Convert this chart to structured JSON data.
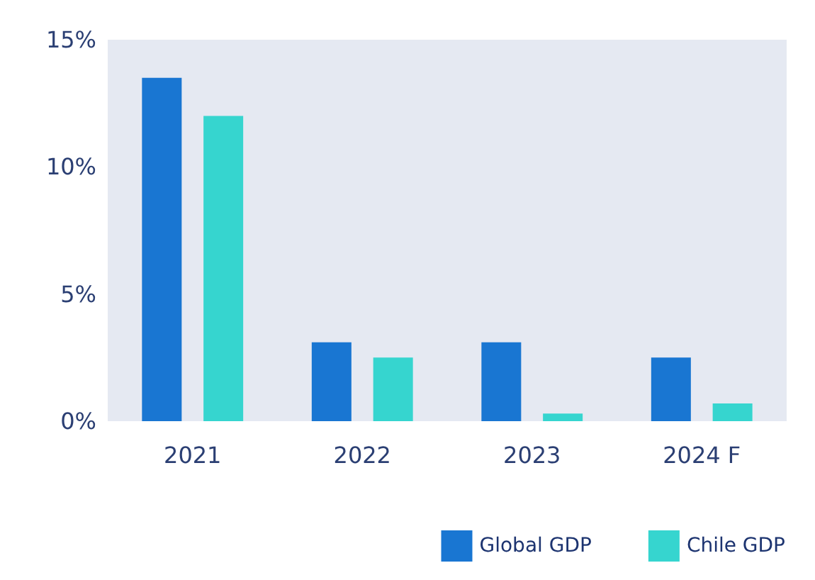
{
  "chart_data": {
    "type": "bar",
    "categories": [
      "2021",
      "2022",
      "2023",
      "2024 F"
    ],
    "series": [
      {
        "name": "Global GDP",
        "color": "#1976d2",
        "values": [
          13.5,
          3.1,
          3.1,
          2.5
        ]
      },
      {
        "name": "Chile GDP",
        "color": "#36d5cf",
        "values": [
          12.0,
          2.5,
          0.3,
          0.7
        ]
      }
    ],
    "ylim": [
      0,
      15
    ],
    "yticks": [
      {
        "value": 0,
        "label": "0%"
      },
      {
        "value": 5,
        "label": "5%"
      },
      {
        "value": 10,
        "label": "10%"
      },
      {
        "value": 15,
        "label": "15%"
      }
    ],
    "grid": false,
    "legend": "bottom right"
  }
}
